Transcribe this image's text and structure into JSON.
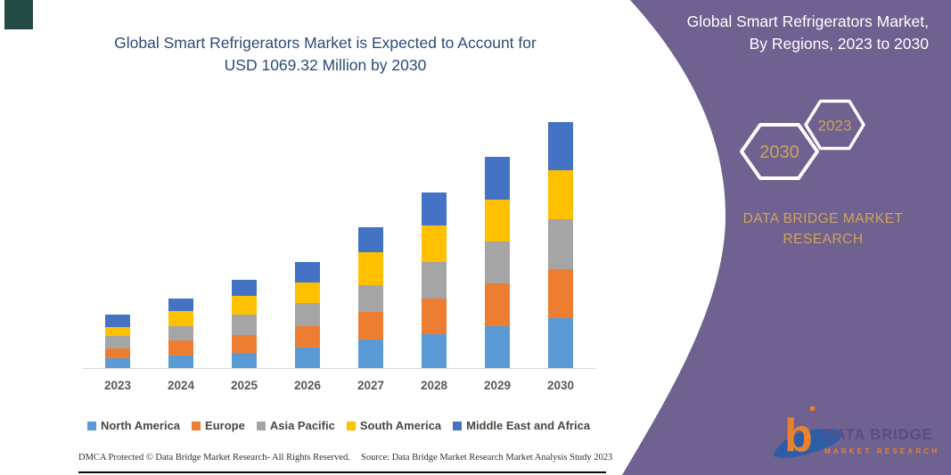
{
  "header": {
    "title_line1": "Global Smart Refrigerators Market is Expected to Account for",
    "title_line2": "USD 1069.32 Million by 2030",
    "title_color": "#2B4B77"
  },
  "panel": {
    "title_line1": "Global Smart Refrigerators Market,",
    "title_line2": "By Regions, 2023 to 2030",
    "background_color": "#6F6190",
    "hexagon_back_year": "2030",
    "hexagon_front_year": "2023",
    "brand_line1": "DATA BRIDGE MARKET",
    "brand_line2": "RESEARCH",
    "gold_color": "#CBA35C"
  },
  "logo": {
    "word1": "DATA BRIDGE",
    "word2": "MARKET RESEARCH",
    "orange": "#E8822F",
    "blue": "#2E5DA6"
  },
  "footer": {
    "left": "DMCA Protected © Data Bridge Market Research-  All Rights Reserved.",
    "right": "Source: Data Bridge Market Research  Market Analysis Study 2023"
  },
  "chart_data": {
    "type": "bar",
    "stacked": true,
    "title": "Global Smart Refrigerators Market is Expected to Account for USD 1069.32 Million by 2030",
    "unit": "USD Million",
    "values_note": "segment values estimated from bar proportions; 2030 total labeled 1069.32",
    "categories": [
      "2023",
      "2024",
      "2025",
      "2026",
      "2027",
      "2028",
      "2029",
      "2030"
    ],
    "series": [
      {
        "name": "North America",
        "color": "#5B9BD5",
        "values": [
          41,
          54,
          67,
          88,
          123,
          148,
          181,
          216
        ]
      },
      {
        "name": "Europe",
        "color": "#ED7D31",
        "values": [
          46,
          65,
          77,
          93,
          123,
          155,
          187,
          215
        ]
      },
      {
        "name": "Asia Pacific",
        "color": "#A5A5A5",
        "values": [
          52,
          65,
          88,
          101,
          116,
          159,
          181,
          215
        ]
      },
      {
        "name": "South America",
        "color": "#FFC000",
        "values": [
          41,
          65,
          80,
          90,
          142,
          158,
          185,
          214
        ]
      },
      {
        "name": "Middle East and Africa",
        "color": "#4472C4",
        "values": [
          52,
          55,
          71,
          90,
          110,
          145,
          186,
          209.32
        ]
      }
    ],
    "totals": [
      232,
      304,
      383,
      462,
      614,
      765,
      920,
      1069.32
    ],
    "xlabel": "",
    "ylabel": "",
    "ylim": [
      0,
      1100
    ],
    "grid": false,
    "y_axis_visible": false,
    "legend_position": "bottom"
  }
}
